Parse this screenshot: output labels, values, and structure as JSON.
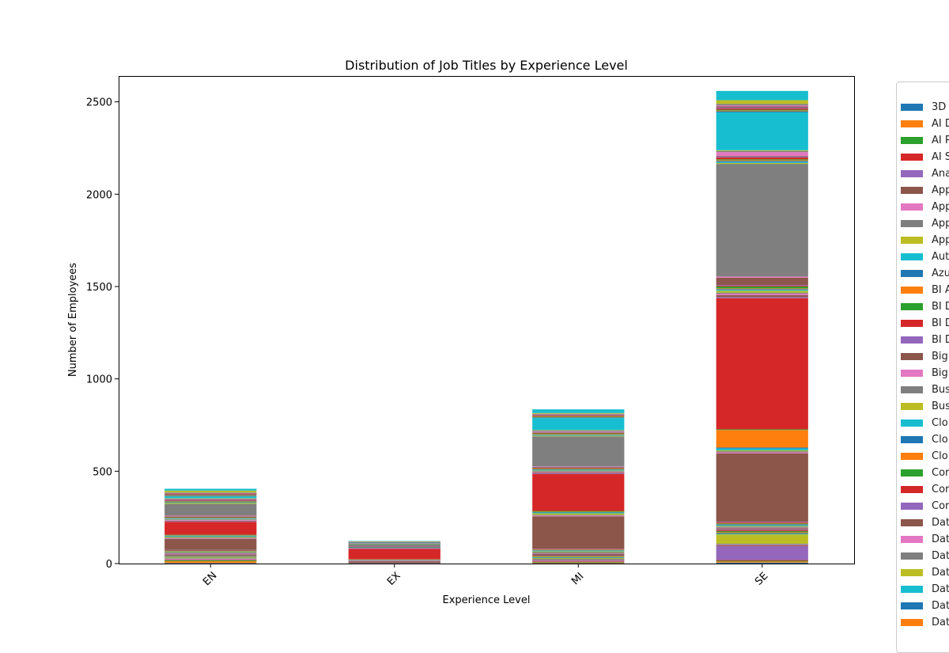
{
  "chart_data": {
    "type": "bar",
    "stacked": true,
    "title": "Distribution of Job Titles by Experience Level",
    "xlabel": "Experience Level",
    "ylabel": "Number of Employees",
    "categories": [
      "EN",
      "EX",
      "MI",
      "SE"
    ],
    "ylim": [
      0,
      2640
    ],
    "yticks": [
      0,
      500,
      1000,
      1500,
      2000,
      2500
    ],
    "grid": false,
    "legend_position": "right",
    "palette": [
      "#1f77b4",
      "#ff7f0e",
      "#2ca02c",
      "#d62728",
      "#9467bd",
      "#8c564b",
      "#e377c2",
      "#7f7f7f",
      "#bcbd22",
      "#17becf"
    ],
    "series": [
      {
        "name": "3D",
        "values": [
          3,
          0,
          2,
          5
        ],
        "color": "#1f77b4"
      },
      {
        "name": "AI D",
        "values": [
          10,
          0,
          4,
          6
        ],
        "color": "#ff7f0e"
      },
      {
        "name": "AI P",
        "values": [
          5,
          0,
          3,
          4
        ],
        "color": "#2ca02c"
      },
      {
        "name": "AI S",
        "values": [
          2,
          0,
          3,
          4
        ],
        "color": "#d62728"
      },
      {
        "name": "Ana",
        "values": [
          3,
          0,
          4,
          75
        ],
        "color": "#9467bd"
      },
      {
        "name": "App",
        "values": [
          2,
          0,
          3,
          5
        ],
        "color": "#8c564b"
      },
      {
        "name": "App",
        "values": [
          1,
          0,
          2,
          3
        ],
        "color": "#e377c2"
      },
      {
        "name": "App",
        "values": [
          3,
          2,
          5,
          6
        ],
        "color": "#7f7f7f"
      },
      {
        "name": "App",
        "values": [
          5,
          0,
          4,
          50
        ],
        "color": "#bcbd22"
      },
      {
        "name": "Aut",
        "values": [
          1,
          0,
          2,
          3
        ],
        "color": "#17becf"
      },
      {
        "name": "Azu",
        "values": [
          2,
          0,
          3,
          4
        ],
        "color": "#1f77b4"
      },
      {
        "name": "BI A",
        "values": [
          2,
          0,
          3,
          5
        ],
        "color": "#ff7f0e"
      },
      {
        "name": "BI D",
        "values": [
          3,
          0,
          4,
          6
        ],
        "color": "#2ca02c"
      },
      {
        "name": "BI D",
        "values": [
          2,
          0,
          3,
          5
        ],
        "color": "#d62728"
      },
      {
        "name": "BI D",
        "values": [
          1,
          0,
          2,
          4
        ],
        "color": "#9467bd"
      },
      {
        "name": "Big",
        "values": [
          5,
          2,
          5,
          6
        ],
        "color": "#8c564b"
      },
      {
        "name": "Big",
        "values": [
          4,
          0,
          2,
          3
        ],
        "color": "#e377c2"
      },
      {
        "name": "Bus",
        "values": [
          6,
          3,
          8,
          6
        ],
        "color": "#7f7f7f"
      },
      {
        "name": "Bus",
        "values": [
          3,
          0,
          4,
          4
        ],
        "color": "#bcbd22"
      },
      {
        "name": "Clo",
        "values": [
          2,
          0,
          3,
          4
        ],
        "color": "#17becf"
      },
      {
        "name": "Clo",
        "values": [
          2,
          1,
          3,
          5
        ],
        "color": "#1f77b4"
      },
      {
        "name": "Clo",
        "values": [
          1,
          0,
          2,
          3
        ],
        "color": "#ff7f0e"
      },
      {
        "name": "Cor",
        "values": [
          2,
          0,
          2,
          3
        ],
        "color": "#2ca02c"
      },
      {
        "name": "Cor",
        "values": [
          3,
          1,
          3,
          4
        ],
        "color": "#d62728"
      },
      {
        "name": "Cor",
        "values": [
          1,
          0,
          2,
          3
        ],
        "color": "#9467bd"
      },
      {
        "name": "Dat",
        "values": [
          60,
          5,
          175,
          370
        ],
        "color": "#8c564b"
      },
      {
        "name": "Dat",
        "values": [
          3,
          2,
          4,
          6
        ],
        "color": "#e377c2"
      },
      {
        "name": "Dat",
        "values": [
          4,
          3,
          4,
          6
        ],
        "color": "#7f7f7f"
      },
      {
        "name": "Dat",
        "values": [
          4,
          2,
          8,
          5
        ],
        "color": "#bcbd22"
      },
      {
        "name": "Dat",
        "values": [
          3,
          1,
          4,
          10
        ],
        "color": "#17becf"
      },
      {
        "name": "Dat",
        "values": [
          3,
          1,
          3,
          5
        ],
        "color": "#1f77b4"
      },
      {
        "name": "Dat",
        "values": [
          2,
          1,
          2,
          95
        ],
        "color": "#ff7f0e"
      },
      {
        "name": "",
        "values": [
          3,
          0,
          4,
          4
        ],
        "color": "#2ca02c"
      },
      {
        "name": "",
        "values": [
          70,
          55,
          200,
          710
        ],
        "color": "#d62728"
      },
      {
        "name": "",
        "values": [
          3,
          3,
          4,
          6
        ],
        "color": "#9467bd"
      },
      {
        "name": "",
        "values": [
          3,
          2,
          5,
          10
        ],
        "color": "#8c564b"
      },
      {
        "name": "",
        "values": [
          3,
          1,
          3,
          8
        ],
        "color": "#e377c2"
      },
      {
        "name": "",
        "values": [
          4,
          2,
          4,
          6
        ],
        "color": "#7f7f7f"
      },
      {
        "name": "",
        "values": [
          2,
          0,
          3,
          10
        ],
        "color": "#bcbd22"
      },
      {
        "name": "",
        "values": [
          2,
          1,
          3,
          5
        ],
        "color": "#17becf"
      },
      {
        "name": "",
        "values": [
          3,
          1,
          3,
          4
        ],
        "color": "#1f77b4"
      },
      {
        "name": "",
        "values": [
          2,
          0,
          3,
          4
        ],
        "color": "#ff7f0e"
      },
      {
        "name": "",
        "values": [
          3,
          1,
          3,
          10
        ],
        "color": "#2ca02c"
      },
      {
        "name": "",
        "values": [
          3,
          2,
          3,
          4
        ],
        "color": "#d62728"
      },
      {
        "name": "",
        "values": [
          2,
          0,
          2,
          4
        ],
        "color": "#9467bd"
      },
      {
        "name": "",
        "values": [
          3,
          1,
          3,
          40
        ],
        "color": "#8c564b"
      },
      {
        "name": "",
        "values": [
          2,
          1,
          2,
          6
        ],
        "color": "#e377c2"
      },
      {
        "name": "",
        "values": [
          62,
          10,
          163,
          610
        ],
        "color": "#7f7f7f"
      },
      {
        "name": "",
        "values": [
          5,
          2,
          4,
          5
        ],
        "color": "#bcbd22"
      },
      {
        "name": "",
        "values": [
          2,
          1,
          3,
          5
        ],
        "color": "#17becf"
      },
      {
        "name": "",
        "values": [
          3,
          0,
          3,
          6
        ],
        "color": "#1f77b4"
      },
      {
        "name": "",
        "values": [
          2,
          0,
          3,
          4
        ],
        "color": "#ff7f0e"
      },
      {
        "name": "",
        "values": [
          3,
          1,
          3,
          5
        ],
        "color": "#2ca02c"
      },
      {
        "name": "",
        "values": [
          3,
          0,
          3,
          10
        ],
        "color": "#d62728"
      },
      {
        "name": "",
        "values": [
          2,
          1,
          2,
          5
        ],
        "color": "#9467bd"
      },
      {
        "name": "",
        "values": [
          2,
          0,
          2,
          4
        ],
        "color": "#8c564b"
      },
      {
        "name": "",
        "values": [
          3,
          1,
          3,
          20
        ],
        "color": "#e377c2"
      },
      {
        "name": "",
        "values": [
          4,
          2,
          6,
          6
        ],
        "color": "#7f7f7f"
      },
      {
        "name": "",
        "values": [
          2,
          0,
          2,
          4
        ],
        "color": "#bcbd22"
      },
      {
        "name": "",
        "values": [
          10,
          2,
          65,
          205
        ],
        "color": "#17becf"
      },
      {
        "name": "",
        "values": [
          3,
          1,
          4,
          6
        ],
        "color": "#1f77b4"
      },
      {
        "name": "",
        "values": [
          2,
          0,
          3,
          4
        ],
        "color": "#ff7f0e"
      },
      {
        "name": "",
        "values": [
          3,
          1,
          3,
          5
        ],
        "color": "#2ca02c"
      },
      {
        "name": "",
        "values": [
          3,
          0,
          3,
          6
        ],
        "color": "#d62728"
      },
      {
        "name": "",
        "values": [
          2,
          1,
          2,
          5
        ],
        "color": "#9467bd"
      },
      {
        "name": "",
        "values": [
          3,
          0,
          3,
          6
        ],
        "color": "#8c564b"
      },
      {
        "name": "",
        "values": [
          2,
          1,
          2,
          6
        ],
        "color": "#e377c2"
      },
      {
        "name": "",
        "values": [
          3,
          0,
          3,
          8
        ],
        "color": "#7f7f7f"
      },
      {
        "name": "",
        "values": [
          10,
          2,
          4,
          20
        ],
        "color": "#bcbd22"
      },
      {
        "name": "",
        "values": [
          10,
          2,
          20,
          50
        ],
        "color": "#17becf"
      }
    ]
  }
}
